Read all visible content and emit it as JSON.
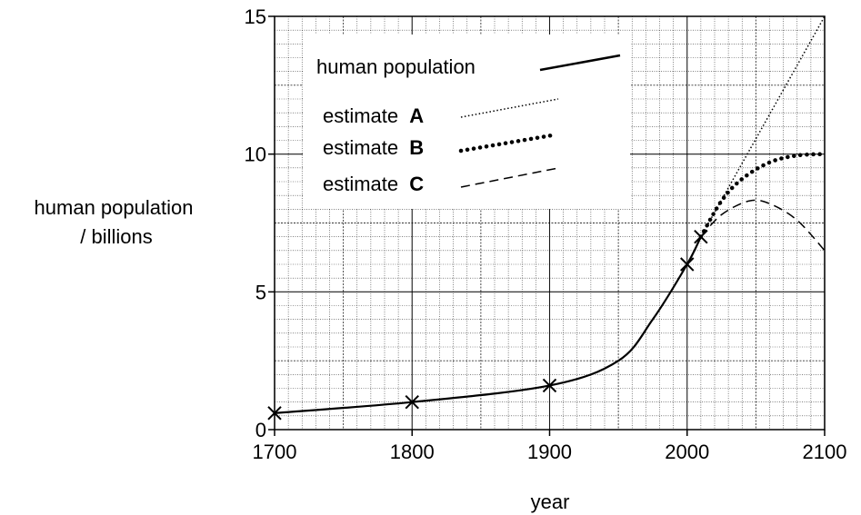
{
  "chart_data": {
    "type": "line",
    "xlabel": "year",
    "ylabel_lines": [
      "human population",
      "/ billions"
    ],
    "xlim": [
      1700,
      2100
    ],
    "ylim": [
      0,
      15
    ],
    "x_ticks": [
      1700,
      1800,
      1900,
      2000,
      2100
    ],
    "y_ticks": [
      0,
      5,
      10,
      15
    ],
    "grid": true,
    "legend_position": "top-left",
    "series": [
      {
        "name": "human population",
        "style": "solid",
        "marker": "x",
        "x": [
          1700,
          1800,
          1900,
          1950,
          1975,
          2000,
          2010
        ],
        "y": [
          0.6,
          1.0,
          1.6,
          2.5,
          4.0,
          6.0,
          7.0
        ]
      },
      {
        "name": "estimate A",
        "legend_prefix": "estimate",
        "legend_key": "A",
        "style": "fine-dotted",
        "x": [
          2010,
          2100
        ],
        "y": [
          7.0,
          15.0
        ]
      },
      {
        "name": "estimate B",
        "legend_prefix": "estimate",
        "legend_key": "B",
        "style": "bold-dotted",
        "x": [
          2010,
          2025,
          2040,
          2060,
          2080,
          2100
        ],
        "y": [
          7.0,
          8.3,
          9.1,
          9.7,
          9.95,
          10.0
        ]
      },
      {
        "name": "estimate C",
        "legend_prefix": "estimate",
        "legend_key": "C",
        "style": "dashed",
        "x": [
          2010,
          2025,
          2045,
          2060,
          2080,
          2100
        ],
        "y": [
          7.0,
          7.8,
          8.3,
          8.2,
          7.6,
          6.5
        ]
      }
    ],
    "measured_points": {
      "x": [
        1700,
        1800,
        1900,
        2000,
        2010
      ],
      "y": [
        0.6,
        1.0,
        1.6,
        6.0,
        7.0
      ]
    }
  },
  "colors": {
    "ink": "#000000",
    "grid": "#000000",
    "background": "#ffffff"
  }
}
